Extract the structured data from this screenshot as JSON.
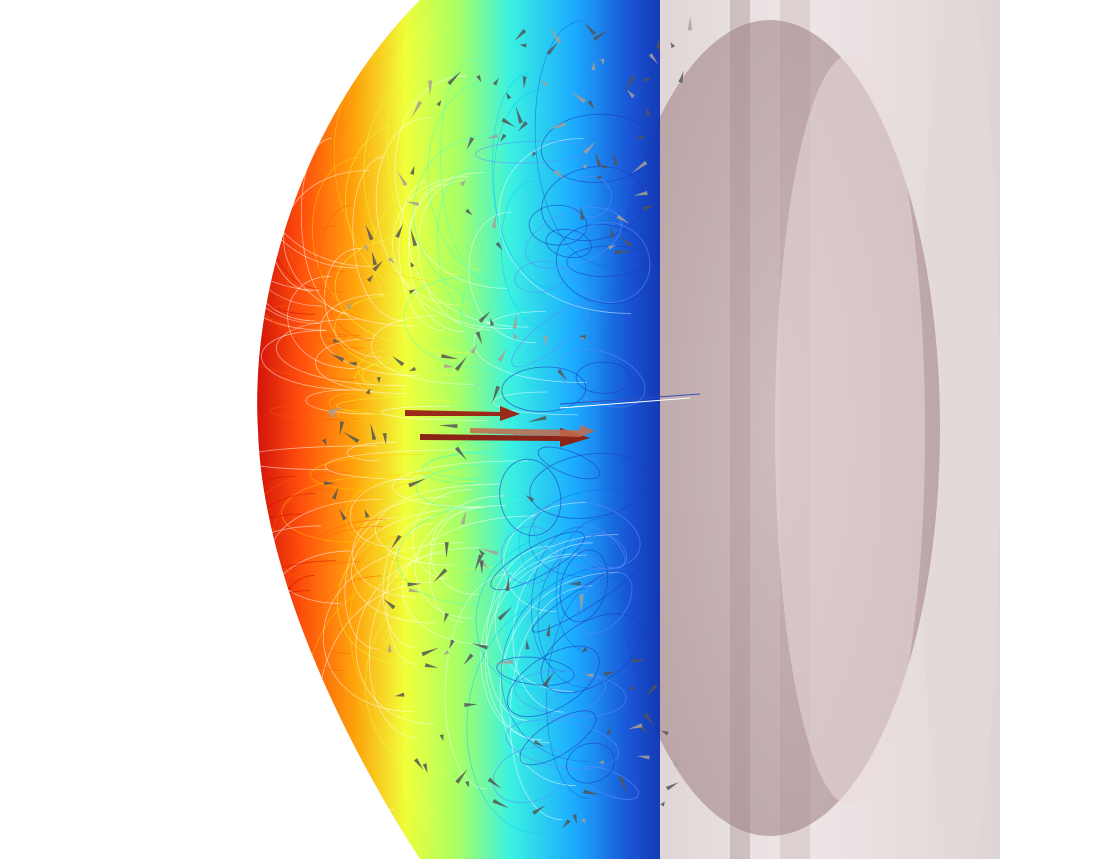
{
  "scene": {
    "background": "#ffffff",
    "shell_color": "#c9b8b8",
    "inner_color": "#a98c8e",
    "colormap": [
      "#cc0000",
      "#ff5a00",
      "#ffd000",
      "#e8ff40",
      "#40ffd0",
      "#00c8ff",
      "#1060e0",
      "#0a2aa8"
    ],
    "glyph_color": "#555555",
    "arrow_color": "#9a2a1a"
  }
}
